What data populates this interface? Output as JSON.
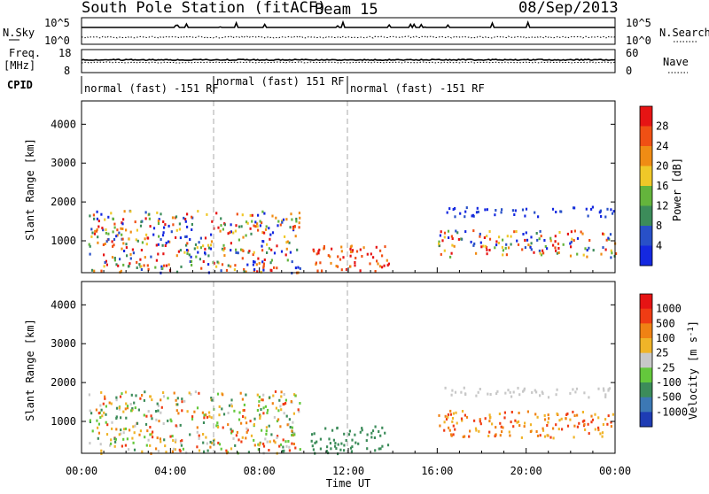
{
  "header": {
    "station": "South Pole Station (fitACF)",
    "beam": "Beam 15",
    "date": "08/Sep/2013"
  },
  "top_panels": {
    "nsky_label": "N.Sky",
    "nsky_ticks": [
      "10^5",
      "10^0"
    ],
    "nsearch_label": "N.Search",
    "nsearch_ticks": [
      "10^5",
      "10^0"
    ],
    "freq_label": "Freq.",
    "freq_unit": "[MHz]",
    "freq_ticks": [
      "18",
      "8"
    ],
    "nave_label": "Nave",
    "nave_ticks": [
      "60",
      "0"
    ],
    "cpid_label": "CPID",
    "cpid_segments": [
      {
        "label": "normal (fast) -151 RF",
        "start_h": 0,
        "end_h": 6
      },
      {
        "label": "normal (fast) 151 RF",
        "start_h": 6,
        "end_h": 12
      },
      {
        "label": "normal (fast) -151 RF",
        "start_h": 12,
        "end_h": 24
      }
    ]
  },
  "chart_data": [
    {
      "type": "heatmap",
      "panel": "power",
      "ylabel": "Slant Range [km]",
      "xlabel": "",
      "ylim": [
        180,
        4600
      ],
      "xlim_hours": [
        0,
        24
      ],
      "yticks": [
        1000,
        2000,
        3000,
        4000
      ],
      "colorbar_label": "Power [dB]",
      "colorbar_ticks": [
        "4",
        "8",
        "12",
        "16",
        "20",
        "24",
        "28"
      ],
      "colorbar_colors": [
        "#1428e0",
        "#2850c8",
        "#3c8c5a",
        "#64b43c",
        "#f0c828",
        "#f08c14",
        "#f05014",
        "#e61414"
      ],
      "features": [
        {
          "t_start": 0.3,
          "t_end": 9.8,
          "r_min": 200,
          "r_max": 1800,
          "level": "mixed"
        },
        {
          "t_start": 10.3,
          "t_end": 13.8,
          "r_min": 200,
          "r_max": 900,
          "level": "high"
        },
        {
          "t_start": 16.0,
          "t_end": 24.0,
          "r_min": 600,
          "r_max": 1300,
          "level": "mixed"
        },
        {
          "t_start": 16.3,
          "t_end": 24.0,
          "r_min": 1650,
          "r_max": 1900,
          "level": "low"
        }
      ]
    },
    {
      "type": "heatmap",
      "panel": "velocity",
      "ylabel": "Slant Range [km]",
      "xlabel": "Time UT",
      "ylim": [
        180,
        4600
      ],
      "xlim_hours": [
        0,
        24
      ],
      "yticks": [
        1000,
        2000,
        3000,
        4000
      ],
      "xticks": [
        "00:00",
        "04:00",
        "08:00",
        "12:00",
        "16:00",
        "20:00",
        "00:00"
      ],
      "colorbar_label": "Velocity [m s-1]",
      "colorbar_ticks": [
        "1000",
        "500",
        "100",
        "25",
        "-25",
        "-100",
        "-500",
        "-1000"
      ],
      "colorbar_colors": [
        "#1e3cb4",
        "#3c78b4",
        "#3c8c5a",
        "#64c83c",
        "#c8c8c8",
        "#f0b428",
        "#f08214",
        "#f03c14",
        "#e61414"
      ],
      "features": [
        {
          "t_start": 0.3,
          "t_end": 9.8,
          "r_min": 200,
          "r_max": 1800,
          "level": "orange-mixed"
        },
        {
          "t_start": 10.3,
          "t_end": 13.8,
          "r_min": 200,
          "r_max": 900,
          "level": "green"
        },
        {
          "t_start": 16.0,
          "t_end": 24.0,
          "r_min": 600,
          "r_max": 1300,
          "level": "orange"
        },
        {
          "t_start": 16.3,
          "t_end": 24.0,
          "r_min": 1650,
          "r_max": 1900,
          "level": "grey"
        }
      ]
    }
  ]
}
